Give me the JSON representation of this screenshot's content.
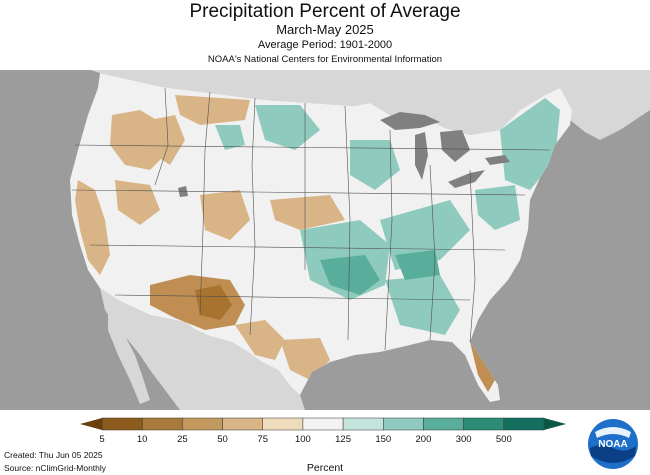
{
  "header": {
    "title": "Precipitation Percent of Average",
    "subtitle": "March-May 2025",
    "average_period": "Average Period: 1901-2000",
    "organization": "NOAA's National Centers for Environmental Information"
  },
  "legend": {
    "title": "Percent",
    "ticks": [
      "5",
      "10",
      "25",
      "50",
      "75",
      "100",
      "125",
      "150",
      "200",
      "300",
      "500"
    ],
    "colors": [
      "#8c5a1a",
      "#a87a3c",
      "#c39a5e",
      "#d8b486",
      "#eedcbd",
      "#f3f3f3",
      "#c3e3dc",
      "#8ecbbe",
      "#59ad9b",
      "#2c8c78",
      "#14705e"
    ],
    "under_color": "#6b400c",
    "over_color": "#0c5648"
  },
  "footer": {
    "created": "Created: Thu Jun 05 2025",
    "source": "Source: nClimGrid-Monthly"
  },
  "logo": {
    "text": "NOAA",
    "icon": "noaa-logo-icon"
  },
  "map_colors": {
    "ocean": "#9c9c9c",
    "land_outside": "#d7d7d7",
    "lakes": "#808080",
    "usa_base": "#f1f1f1",
    "dry": "#d8b486",
    "very_dry": "#c08e52",
    "extreme_dry": "#a8732f",
    "wet": "#8ecbbe",
    "very_wet": "#59ad9b",
    "boundaries": "#505050"
  }
}
